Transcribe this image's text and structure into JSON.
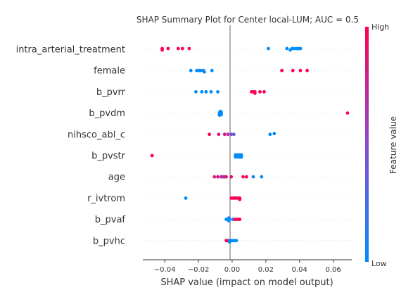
{
  "chart_data": {
    "type": "scatter",
    "subtype": "shap-summary-beeswarm",
    "title": "SHAP Summary Plot for Center local-LUM; AUC = 0.5",
    "xlabel": "SHAP value (impact on model output)",
    "xlim": [
      -0.053,
      0.071
    ],
    "xticks": [
      -0.04,
      -0.02,
      0.0,
      0.02,
      0.04,
      0.06
    ],
    "xtick_labels": [
      "−0.04",
      "−0.02",
      "0.00",
      "0.02",
      "0.04",
      "0.06"
    ],
    "colorbar": {
      "label": "Feature value",
      "high_label": "High",
      "low_label": "Low",
      "high_color": "#ff0052",
      "low_color": "#008bfb"
    },
    "features": [
      {
        "name": "intra_arterial_treatment",
        "points": [
          {
            "x": -0.0415,
            "v": 1,
            "o": -0.1
          },
          {
            "x": -0.0415,
            "v": 1,
            "o": 0.1
          },
          {
            "x": -0.038,
            "v": 1,
            "o": 0.1
          },
          {
            "x": -0.032,
            "v": 1,
            "o": 0.1
          },
          {
            "x": -0.0295,
            "v": 1,
            "o": 0.1
          },
          {
            "x": -0.0255,
            "v": 1,
            "o": 0.1
          },
          {
            "x": 0.0215,
            "v": 0,
            "o": 0.1
          },
          {
            "x": 0.0325,
            "v": 0,
            "o": 0.1
          },
          {
            "x": 0.0355,
            "v": 0,
            "o": 0.1
          },
          {
            "x": 0.037,
            "v": 0,
            "o": 0.1
          },
          {
            "x": 0.0385,
            "v": 0,
            "o": 0.1
          },
          {
            "x": 0.0395,
            "v": 0,
            "o": 0.1
          },
          {
            "x": 0.0405,
            "v": 0,
            "o": 0.1
          },
          {
            "x": 0.0345,
            "v": 0,
            "o": -0.1
          }
        ]
      },
      {
        "name": "female",
        "points": [
          {
            "x": -0.0245,
            "v": 0,
            "o": 0
          },
          {
            "x": -0.021,
            "v": 0,
            "o": 0
          },
          {
            "x": -0.0195,
            "v": 0,
            "o": 0
          },
          {
            "x": -0.0185,
            "v": 0,
            "o": 0
          },
          {
            "x": -0.017,
            "v": 0,
            "o": 0
          },
          {
            "x": -0.0165,
            "v": 0,
            "o": -0.2
          },
          {
            "x": -0.012,
            "v": 0,
            "o": 0
          },
          {
            "x": 0.0295,
            "v": 1,
            "o": 0
          },
          {
            "x": 0.036,
            "v": 1,
            "o": 0
          },
          {
            "x": 0.0405,
            "v": 1,
            "o": 0
          },
          {
            "x": 0.0445,
            "v": 1,
            "o": 0
          }
        ]
      },
      {
        "name": "b_pvrr",
        "points": [
          {
            "x": -0.0215,
            "v": 0,
            "o": 0
          },
          {
            "x": -0.018,
            "v": 0,
            "o": 0
          },
          {
            "x": -0.0155,
            "v": 0,
            "o": 0
          },
          {
            "x": -0.0125,
            "v": 0,
            "o": 0
          },
          {
            "x": -0.0085,
            "v": 0,
            "o": 0
          },
          {
            "x": 0.0115,
            "v": 1,
            "o": 0
          },
          {
            "x": 0.0125,
            "v": 1,
            "o": 0
          },
          {
            "x": 0.0135,
            "v": 1,
            "o": 0
          },
          {
            "x": 0.0135,
            "v": 1,
            "o": -0.2
          },
          {
            "x": 0.0165,
            "v": 1,
            "o": 0
          },
          {
            "x": 0.019,
            "v": 1,
            "o": 0
          }
        ]
      },
      {
        "name": "b_pvdm",
        "points": [
          {
            "x": -0.0075,
            "v": 0,
            "o": -0.3
          },
          {
            "x": -0.0065,
            "v": 0,
            "o": -0.25
          },
          {
            "x": -0.0075,
            "v": 0,
            "o": -0.15
          },
          {
            "x": -0.0065,
            "v": 0,
            "o": -0.15
          },
          {
            "x": -0.0075,
            "v": 0,
            "o": -0.05
          },
          {
            "x": -0.0065,
            "v": 0,
            "o": -0.05
          },
          {
            "x": -0.0075,
            "v": 0,
            "o": 0.05
          },
          {
            "x": -0.0065,
            "v": 0,
            "o": 0.05
          },
          {
            "x": -0.007,
            "v": 0,
            "o": 0.15
          },
          {
            "x": -0.0065,
            "v": 0,
            "o": 0.15
          },
          {
            "x": -0.007,
            "v": 0,
            "o": 0.25
          },
          {
            "x": 0.0685,
            "v": 1,
            "o": 0
          }
        ]
      },
      {
        "name": "nihsco_abl_c",
        "points": [
          {
            "x": -0.0135,
            "v": 1,
            "o": 0
          },
          {
            "x": -0.008,
            "v": 0.85,
            "o": 0
          },
          {
            "x": -0.0045,
            "v": 0.8,
            "o": 0
          },
          {
            "x": -0.0025,
            "v": 0.7,
            "o": 0
          },
          {
            "x": -0.0005,
            "v": 0.55,
            "o": 0
          },
          {
            "x": 0.001,
            "v": 0.3,
            "o": 0
          },
          {
            "x": 0.0225,
            "v": 0,
            "o": 0
          },
          {
            "x": 0.025,
            "v": 0,
            "o": 0.1
          }
        ]
      },
      {
        "name": "b_pvstr",
        "points": [
          {
            "x": -0.0475,
            "v": 1,
            "o": 0
          },
          {
            "x": 0.002,
            "v": 0,
            "o": -0.2
          },
          {
            "x": 0.0035,
            "v": 0,
            "o": -0.2
          },
          {
            "x": 0.0045,
            "v": 0,
            "o": -0.2
          },
          {
            "x": 0.0055,
            "v": 0,
            "o": -0.2
          },
          {
            "x": 0.002,
            "v": 0,
            "o": 0.1
          },
          {
            "x": 0.0035,
            "v": 0,
            "o": 0.1
          },
          {
            "x": 0.0045,
            "v": 0,
            "o": 0.1
          },
          {
            "x": 0.0055,
            "v": 0,
            "o": 0.1
          }
        ]
      },
      {
        "name": "age",
        "points": [
          {
            "x": -0.0105,
            "v": 0.8,
            "o": 0
          },
          {
            "x": -0.0085,
            "v": 0.85,
            "o": 0
          },
          {
            "x": -0.0065,
            "v": 0.65,
            "o": 0
          },
          {
            "x": -0.0055,
            "v": 0.7,
            "o": 0
          },
          {
            "x": -0.0045,
            "v": 0.75,
            "o": 0
          },
          {
            "x": -0.0035,
            "v": 0.8,
            "o": 0
          },
          {
            "x": -0.0005,
            "v": 0.9,
            "o": 0
          },
          {
            "x": 0.0065,
            "v": 0.95,
            "o": 0
          },
          {
            "x": 0.0085,
            "v": 1,
            "o": 0
          },
          {
            "x": 0.0125,
            "v": 0.1,
            "o": 0
          },
          {
            "x": 0.0175,
            "v": 0,
            "o": 0
          }
        ]
      },
      {
        "name": "r_ivtrom",
        "points": [
          {
            "x": -0.0275,
            "v": 0,
            "o": 0
          },
          {
            "x": -0.0005,
            "v": 1,
            "o": 0
          },
          {
            "x": 0.0005,
            "v": 1,
            "o": 0
          },
          {
            "x": 0.0015,
            "v": 1,
            "o": 0
          },
          {
            "x": 0.0025,
            "v": 1,
            "o": 0
          },
          {
            "x": 0.0035,
            "v": 1,
            "o": 0
          },
          {
            "x": 0.0045,
            "v": 1,
            "o": 0
          },
          {
            "x": 0.0045,
            "v": 1,
            "o": -0.2
          }
        ]
      },
      {
        "name": "b_pvaf",
        "points": [
          {
            "x": -0.0035,
            "v": 0,
            "o": 0
          },
          {
            "x": -0.0025,
            "v": 0,
            "o": 0
          },
          {
            "x": -0.0015,
            "v": 0,
            "o": 0
          },
          {
            "x": -0.002,
            "v": 0,
            "o": -0.2
          },
          {
            "x": -0.002,
            "v": 0,
            "o": 0.2
          },
          {
            "x": 0.0005,
            "v": 0,
            "o": 0
          },
          {
            "x": 0.0015,
            "v": 0.9,
            "o": 0
          },
          {
            "x": 0.0025,
            "v": 1,
            "o": 0
          },
          {
            "x": 0.0035,
            "v": 1,
            "o": 0
          },
          {
            "x": 0.0045,
            "v": 1,
            "o": 0
          }
        ]
      },
      {
        "name": "b_pvhc",
        "points": [
          {
            "x": -0.0035,
            "v": 1,
            "o": 0
          },
          {
            "x": -0.0025,
            "v": 1,
            "o": 0
          },
          {
            "x": -0.0015,
            "v": 0,
            "o": 0
          },
          {
            "x": -0.0015,
            "v": 0,
            "o": -0.2
          },
          {
            "x": -0.0005,
            "v": 0,
            "o": 0
          },
          {
            "x": 0.0005,
            "v": 0,
            "o": 0
          },
          {
            "x": 0.0015,
            "v": 0,
            "o": 0
          },
          {
            "x": 0.0025,
            "v": 0,
            "o": 0
          }
        ]
      }
    ]
  }
}
